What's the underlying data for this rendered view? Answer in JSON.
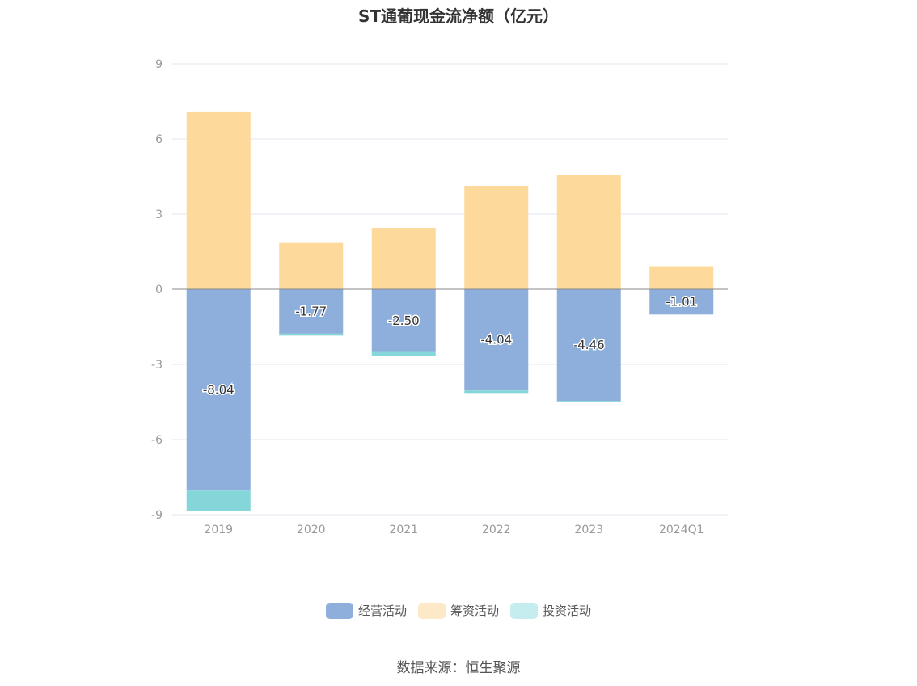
{
  "chart_data": {
    "type": "bar",
    "title": "ST通葡现金流净额（亿元）",
    "categories": [
      "2019",
      "2020",
      "2021",
      "2022",
      "2023",
      "2024Q1"
    ],
    "series": [
      {
        "name": "经营活动",
        "color": "#8eaedb",
        "values": [
          -8.04,
          -1.77,
          -2.5,
          -4.04,
          -4.46,
          -1.01
        ],
        "show_labels": true
      },
      {
        "name": "筹资活动",
        "color": "#fdd99c",
        "values": [
          7.1,
          1.85,
          2.45,
          4.13,
          4.57,
          0.92
        ],
        "show_labels": false
      },
      {
        "name": "投资活动",
        "color": "#84d6d8",
        "values": [
          -0.8,
          -0.08,
          -0.15,
          -0.1,
          -0.05,
          0.0
        ],
        "show_labels": false
      }
    ],
    "legend_colors": [
      "#8eaedb",
      "#fde8c8",
      "#c5ecee"
    ],
    "ylim": [
      -9,
      9
    ],
    "yticks": [
      9,
      6,
      3,
      0,
      -3,
      -6,
      -9
    ],
    "grid": true,
    "legend_position": "bottom"
  },
  "source": "数据来源：恒生聚源"
}
